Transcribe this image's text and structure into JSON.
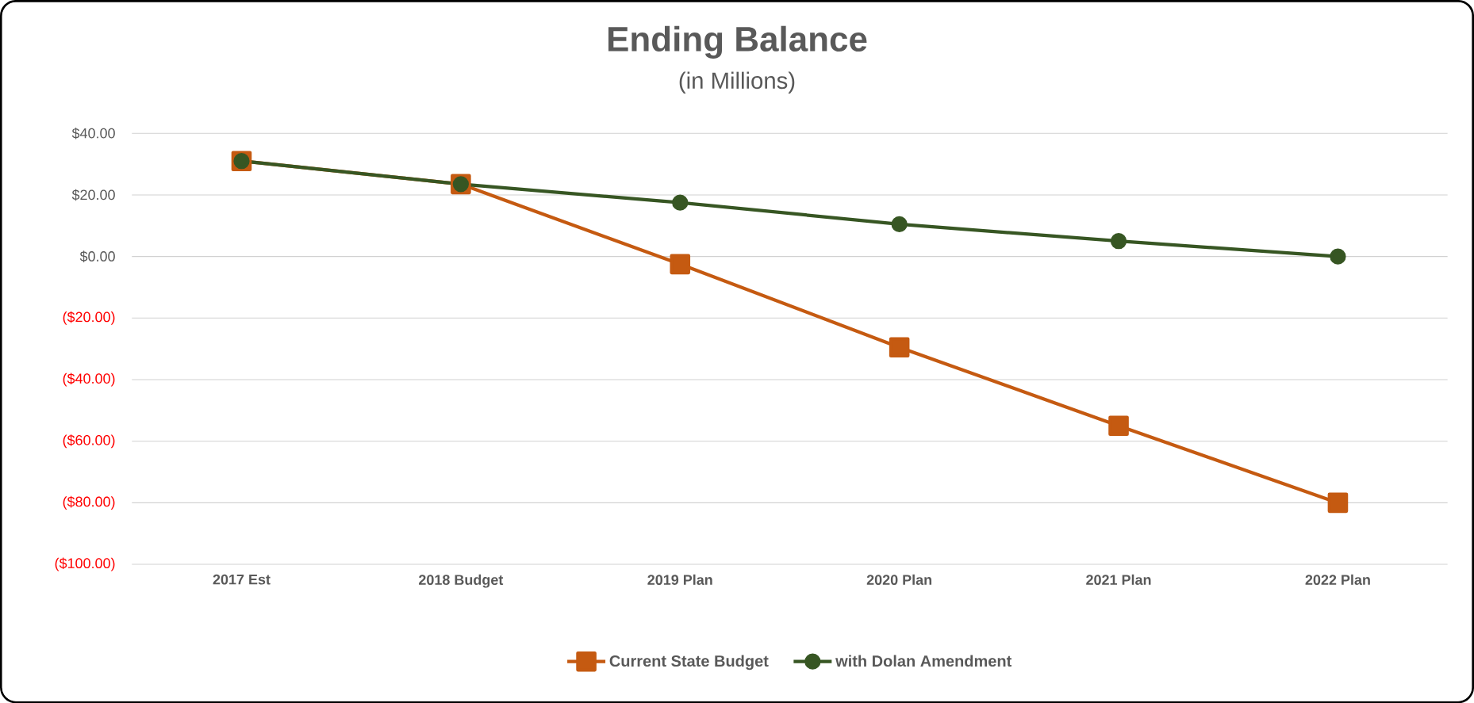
{
  "chart_data": {
    "type": "line",
    "title": "Ending Balance",
    "subtitle": "(in Millions)",
    "categories": [
      "2017 Est",
      "2018 Budget",
      "2019 Plan",
      "2020 Plan",
      "2021 Plan",
      "2022 Plan"
    ],
    "series": [
      {
        "name": "Current State Budget",
        "color": "#c55a11",
        "marker": "square",
        "values": [
          31,
          23.5,
          -2.5,
          -29.5,
          -55,
          -80
        ]
      },
      {
        "name": "with Dolan Amendment",
        "color": "#375623",
        "marker": "circle",
        "values": [
          31,
          23.5,
          17.5,
          10.5,
          5,
          0
        ]
      }
    ],
    "ylim": [
      -100,
      40
    ],
    "yticks": [
      {
        "value": -100,
        "label": "($100.00)"
      },
      {
        "value": -80,
        "label": "($80.00)"
      },
      {
        "value": -60,
        "label": "($60.00)"
      },
      {
        "value": -40,
        "label": "($40.00)"
      },
      {
        "value": -20,
        "label": "($20.00)"
      },
      {
        "value": 0,
        "label": "$0.00"
      },
      {
        "value": 20,
        "label": "$20.00"
      },
      {
        "value": 40,
        "label": "$40.00"
      }
    ],
    "grid": "y",
    "legend": "bottom",
    "line_style": "solid"
  }
}
